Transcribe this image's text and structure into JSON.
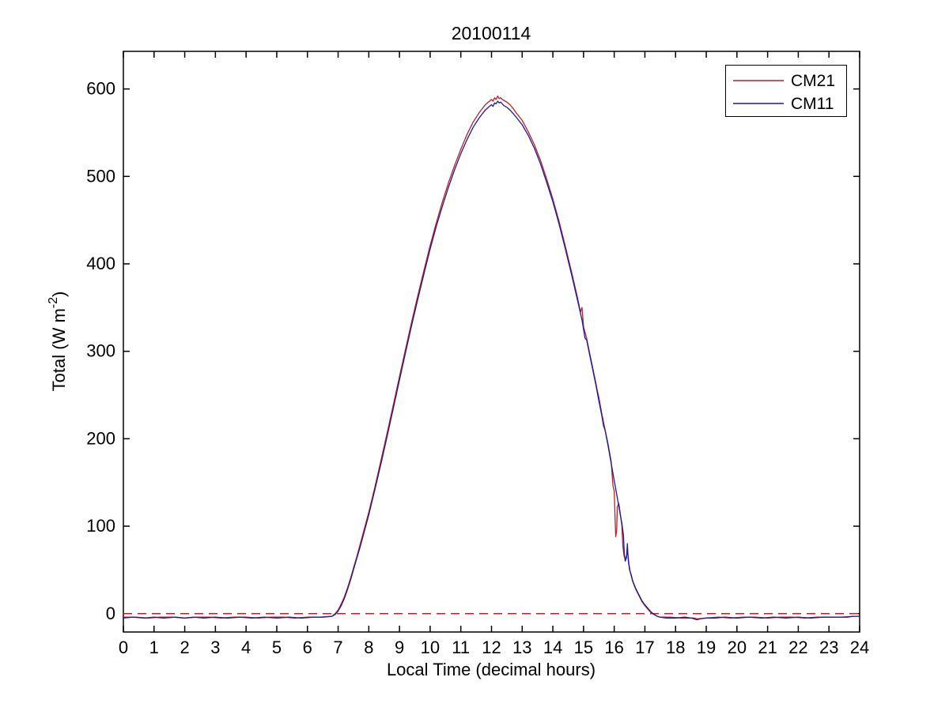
{
  "title": "20100114",
  "xlabel": "Local Time (decimal hours)",
  "ylabel": {
    "prefix": "Total (W m",
    "sup": "-2",
    "suffix": ")"
  },
  "legend": {
    "entries": [
      {
        "label": "CM21",
        "color": "#bb2128"
      },
      {
        "label": "CM11",
        "color": "#1c1c96"
      }
    ]
  },
  "chart_data": {
    "type": "line",
    "title": "20100114",
    "xlabel": "Local Time (decimal hours)",
    "ylabel": "Total (W m^-2)",
    "xlim": [
      0,
      24
    ],
    "ylim": [
      -21,
      643
    ],
    "x_ticks": [
      0,
      1,
      2,
      3,
      4,
      5,
      6,
      7,
      8,
      9,
      10,
      11,
      12,
      13,
      14,
      15,
      16,
      17,
      18,
      19,
      20,
      21,
      22,
      23,
      24
    ],
    "y_ticks": [
      0,
      100,
      200,
      300,
      400,
      500,
      600
    ],
    "grid": false,
    "legend_position": "northeast-inside",
    "reference_line": {
      "y": 0,
      "style": "dashed",
      "color": "#bb2128"
    },
    "series": [
      {
        "name": "CM21",
        "color": "#bb2128",
        "points": [
          [
            0,
            -4
          ],
          [
            0.4,
            -4
          ],
          [
            0.8,
            -5
          ],
          [
            1.2,
            -4
          ],
          [
            1.6,
            -4
          ],
          [
            2,
            -5
          ],
          [
            2.4,
            -4
          ],
          [
            2.8,
            -4
          ],
          [
            3.2,
            -5
          ],
          [
            3.6,
            -4
          ],
          [
            4,
            -4
          ],
          [
            4.4,
            -5
          ],
          [
            4.8,
            -4
          ],
          [
            5.2,
            -4
          ],
          [
            5.6,
            -5
          ],
          [
            6,
            -4
          ],
          [
            6.4,
            -4
          ],
          [
            6.8,
            -3
          ],
          [
            6.9,
            0
          ],
          [
            7,
            4
          ],
          [
            7.1,
            11
          ],
          [
            7.2,
            19
          ],
          [
            7.3,
            29
          ],
          [
            7.4,
            40
          ],
          [
            7.5,
            52
          ],
          [
            7.6,
            64
          ],
          [
            7.7,
            77
          ],
          [
            7.8,
            90
          ],
          [
            7.9,
            103
          ],
          [
            8,
            116
          ],
          [
            8.2,
            145
          ],
          [
            8.4,
            176
          ],
          [
            8.6,
            207
          ],
          [
            8.8,
            239
          ],
          [
            9,
            271
          ],
          [
            9.2,
            303
          ],
          [
            9.4,
            334
          ],
          [
            9.6,
            364
          ],
          [
            9.8,
            393
          ],
          [
            10,
            421
          ],
          [
            10.2,
            447
          ],
          [
            10.4,
            471
          ],
          [
            10.6,
            493
          ],
          [
            10.8,
            513
          ],
          [
            11,
            531
          ],
          [
            11.2,
            548
          ],
          [
            11.4,
            562
          ],
          [
            11.6,
            573
          ],
          [
            11.8,
            582
          ],
          [
            11.9,
            585
          ],
          [
            12,
            588
          ],
          [
            12.05,
            586
          ],
          [
            12.1,
            590
          ],
          [
            12.15,
            588
          ],
          [
            12.2,
            592
          ],
          [
            12.25,
            589
          ],
          [
            12.3,
            590
          ],
          [
            12.35,
            588
          ],
          [
            12.4,
            587
          ],
          [
            12.5,
            585
          ],
          [
            12.6,
            582
          ],
          [
            12.7,
            578
          ],
          [
            12.8,
            573
          ],
          [
            13,
            564
          ],
          [
            13.2,
            551
          ],
          [
            13.4,
            536
          ],
          [
            13.6,
            518
          ],
          [
            13.8,
            497
          ],
          [
            14,
            474
          ],
          [
            14.2,
            449
          ],
          [
            14.4,
            421
          ],
          [
            14.6,
            392
          ],
          [
            14.8,
            362
          ],
          [
            14.9,
            345
          ],
          [
            14.95,
            350
          ],
          [
            15,
            328
          ],
          [
            15.1,
            315
          ],
          [
            15.2,
            298
          ],
          [
            15.4,
            264
          ],
          [
            15.45,
            255
          ],
          [
            15.5,
            247
          ],
          [
            15.6,
            228
          ],
          [
            15.7,
            211
          ],
          [
            15.8,
            194
          ],
          [
            15.9,
            174
          ],
          [
            15.96,
            146
          ],
          [
            16,
            140
          ],
          [
            16.02,
            118
          ],
          [
            16.05,
            88
          ],
          [
            16.08,
            95
          ],
          [
            16.1,
            122
          ],
          [
            16.15,
            126
          ],
          [
            16.2,
            114
          ],
          [
            16.25,
            100
          ],
          [
            16.28,
            78
          ],
          [
            16.32,
            66
          ],
          [
            16.36,
            62
          ],
          [
            16.4,
            66
          ],
          [
            16.44,
            70
          ],
          [
            16.48,
            57
          ],
          [
            16.52,
            48
          ],
          [
            16.6,
            37
          ],
          [
            16.7,
            28
          ],
          [
            16.8,
            21
          ],
          [
            16.9,
            14
          ],
          [
            17,
            9
          ],
          [
            17.1,
            5
          ],
          [
            17.2,
            1
          ],
          [
            17.3,
            -1
          ],
          [
            17.4,
            -3
          ],
          [
            17.5,
            -4
          ],
          [
            17.8,
            -4
          ],
          [
            18.2,
            -5
          ],
          [
            18.6,
            -5
          ],
          [
            18.7,
            -6
          ],
          [
            19,
            -5
          ],
          [
            19.4,
            -4
          ],
          [
            19.8,
            -5
          ],
          [
            20.2,
            -4
          ],
          [
            20.6,
            -4
          ],
          [
            21,
            -5
          ],
          [
            21.4,
            -4
          ],
          [
            21.8,
            -4
          ],
          [
            22.2,
            -5
          ],
          [
            22.6,
            -4
          ],
          [
            23,
            -4
          ],
          [
            23.4,
            -4
          ],
          [
            23.8,
            -3
          ],
          [
            24,
            -3
          ]
        ]
      },
      {
        "name": "CM11",
        "color": "#1c1c96",
        "points": [
          [
            0,
            -5
          ],
          [
            0.3,
            -4
          ],
          [
            0.7,
            -5
          ],
          [
            1,
            -4
          ],
          [
            1.3,
            -5
          ],
          [
            1.7,
            -4
          ],
          [
            2,
            -5
          ],
          [
            2.3,
            -4
          ],
          [
            2.6,
            -5
          ],
          [
            3,
            -4
          ],
          [
            3.4,
            -5
          ],
          [
            3.8,
            -4
          ],
          [
            4.2,
            -5
          ],
          [
            4.6,
            -4
          ],
          [
            5,
            -5
          ],
          [
            5.4,
            -4
          ],
          [
            5.8,
            -5
          ],
          [
            6.2,
            -4
          ],
          [
            6.5,
            -4
          ],
          [
            6.8,
            -3
          ],
          [
            6.9,
            -1
          ],
          [
            7,
            3
          ],
          [
            7.1,
            9
          ],
          [
            7.2,
            17
          ],
          [
            7.3,
            27
          ],
          [
            7.4,
            38
          ],
          [
            7.5,
            50
          ],
          [
            7.6,
            62
          ],
          [
            7.7,
            74
          ],
          [
            7.8,
            87
          ],
          [
            7.9,
            100
          ],
          [
            8,
            113
          ],
          [
            8.2,
            142
          ],
          [
            8.4,
            172
          ],
          [
            8.6,
            203
          ],
          [
            8.8,
            235
          ],
          [
            9,
            267
          ],
          [
            9.2,
            299
          ],
          [
            9.4,
            330
          ],
          [
            9.6,
            360
          ],
          [
            9.8,
            389
          ],
          [
            10,
            417
          ],
          [
            10.2,
            443
          ],
          [
            10.4,
            466
          ],
          [
            10.6,
            488
          ],
          [
            10.8,
            508
          ],
          [
            11,
            526
          ],
          [
            11.2,
            542
          ],
          [
            11.4,
            556
          ],
          [
            11.6,
            567
          ],
          [
            11.8,
            576
          ],
          [
            11.9,
            579
          ],
          [
            12,
            582
          ],
          [
            12.05,
            580
          ],
          [
            12.1,
            584
          ],
          [
            12.15,
            583
          ],
          [
            12.2,
            586
          ],
          [
            12.25,
            584
          ],
          [
            12.3,
            585
          ],
          [
            12.35,
            583
          ],
          [
            12.4,
            581
          ],
          [
            12.5,
            579
          ],
          [
            12.6,
            576
          ],
          [
            12.7,
            572
          ],
          [
            12.8,
            568
          ],
          [
            13,
            559
          ],
          [
            13.2,
            547
          ],
          [
            13.4,
            532
          ],
          [
            13.6,
            514
          ],
          [
            13.8,
            493
          ],
          [
            14,
            471
          ],
          [
            14.2,
            446
          ],
          [
            14.4,
            418
          ],
          [
            14.6,
            389
          ],
          [
            14.8,
            359
          ],
          [
            14.95,
            336
          ],
          [
            15,
            325
          ],
          [
            15.05,
            315
          ],
          [
            15.1,
            313
          ],
          [
            15.2,
            296
          ],
          [
            15.4,
            262
          ],
          [
            15.5,
            243
          ],
          [
            15.6,
            226
          ],
          [
            15.65,
            215
          ],
          [
            15.7,
            210
          ],
          [
            15.8,
            192
          ],
          [
            15.9,
            172
          ],
          [
            16,
            152
          ],
          [
            16.1,
            133
          ],
          [
            16.2,
            113
          ],
          [
            16.25,
            103
          ],
          [
            16.3,
            90
          ],
          [
            16.33,
            68
          ],
          [
            16.36,
            60
          ],
          [
            16.4,
            64
          ],
          [
            16.43,
            80
          ],
          [
            16.46,
            60
          ],
          [
            16.5,
            50
          ],
          [
            16.55,
            45
          ],
          [
            16.6,
            38
          ],
          [
            16.7,
            29
          ],
          [
            16.8,
            22
          ],
          [
            16.9,
            15
          ],
          [
            17,
            10
          ],
          [
            17.1,
            6
          ],
          [
            17.2,
            2
          ],
          [
            17.3,
            -1
          ],
          [
            17.4,
            -3
          ],
          [
            17.5,
            -4
          ],
          [
            17.7,
            -5
          ],
          [
            18,
            -5
          ],
          [
            18.3,
            -4
          ],
          [
            18.5,
            -5
          ],
          [
            18.6,
            -6
          ],
          [
            18.7,
            -7
          ],
          [
            18.8,
            -6
          ],
          [
            19,
            -5
          ],
          [
            19.3,
            -5
          ],
          [
            19.6,
            -4
          ],
          [
            20,
            -5
          ],
          [
            20.4,
            -4
          ],
          [
            20.8,
            -5
          ],
          [
            21.2,
            -4
          ],
          [
            21.6,
            -5
          ],
          [
            22,
            -4
          ],
          [
            22.4,
            -5
          ],
          [
            22.8,
            -4
          ],
          [
            23.2,
            -4
          ],
          [
            23.6,
            -4
          ],
          [
            23.8,
            -3
          ],
          [
            24,
            -3
          ]
        ]
      }
    ]
  }
}
